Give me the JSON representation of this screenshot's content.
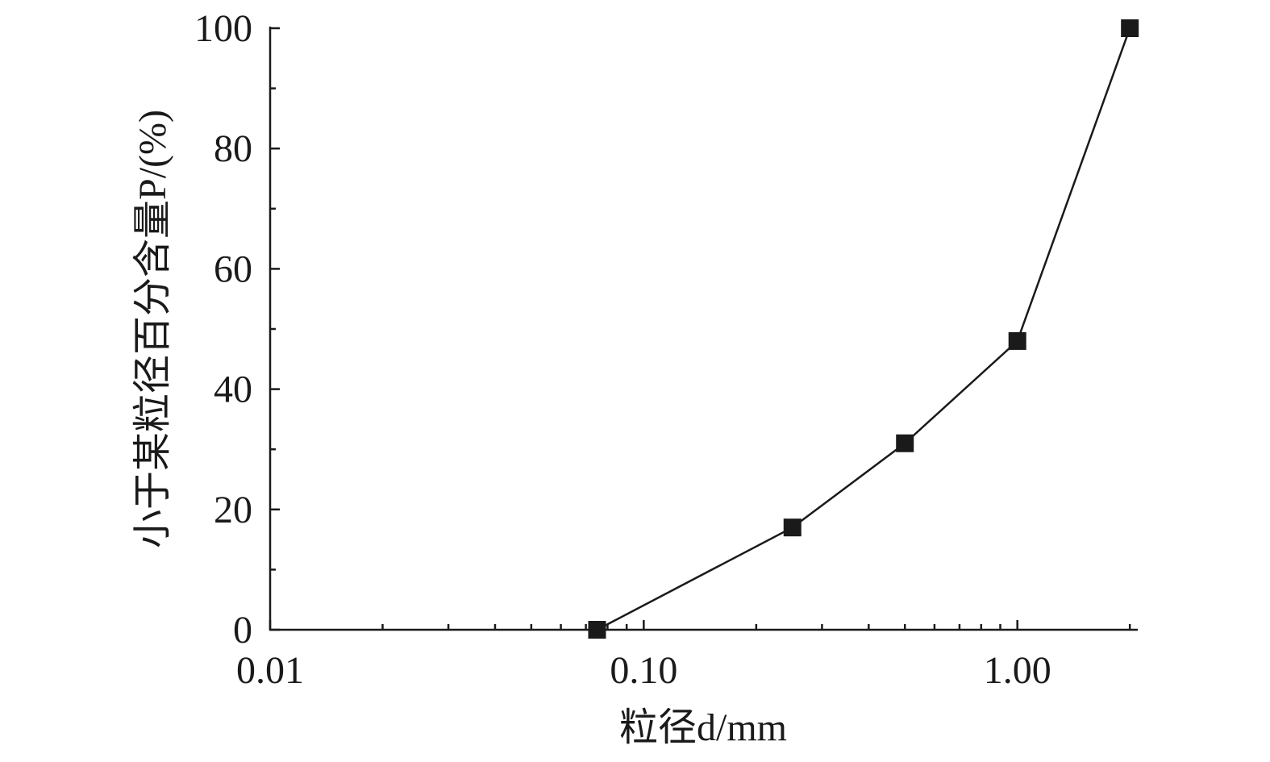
{
  "chart_data": {
    "type": "line",
    "x_label": "粒径d/mm",
    "y_label": "小于某粒径百分含量P/(%)",
    "x": [
      0.075,
      0.25,
      0.5,
      1.0,
      2.0
    ],
    "series": [
      {
        "color": "#1a1a1a",
        "values": [
          0,
          17,
          31,
          48,
          100
        ]
      }
    ],
    "x_log": true,
    "xlim": [
      0.01,
      2.1
    ],
    "xticks": [
      0.01,
      {
        "value": 0.1,
        "label": "0.10"
      },
      {
        "value": 1,
        "label": "1.00"
      }
    ],
    "xminorticks": [
      0.02,
      0.03,
      0.04,
      0.05,
      0.06,
      0.07,
      0.08,
      0.09,
      0.2,
      0.3,
      0.4,
      0.5,
      0.6,
      0.7,
      0.8,
      0.9,
      2
    ],
    "ylim": [
      0,
      100
    ],
    "yticks": [
      0,
      20,
      40,
      60,
      80,
      100
    ],
    "yminorticks": [
      10,
      30,
      50,
      70,
      90
    ]
  }
}
